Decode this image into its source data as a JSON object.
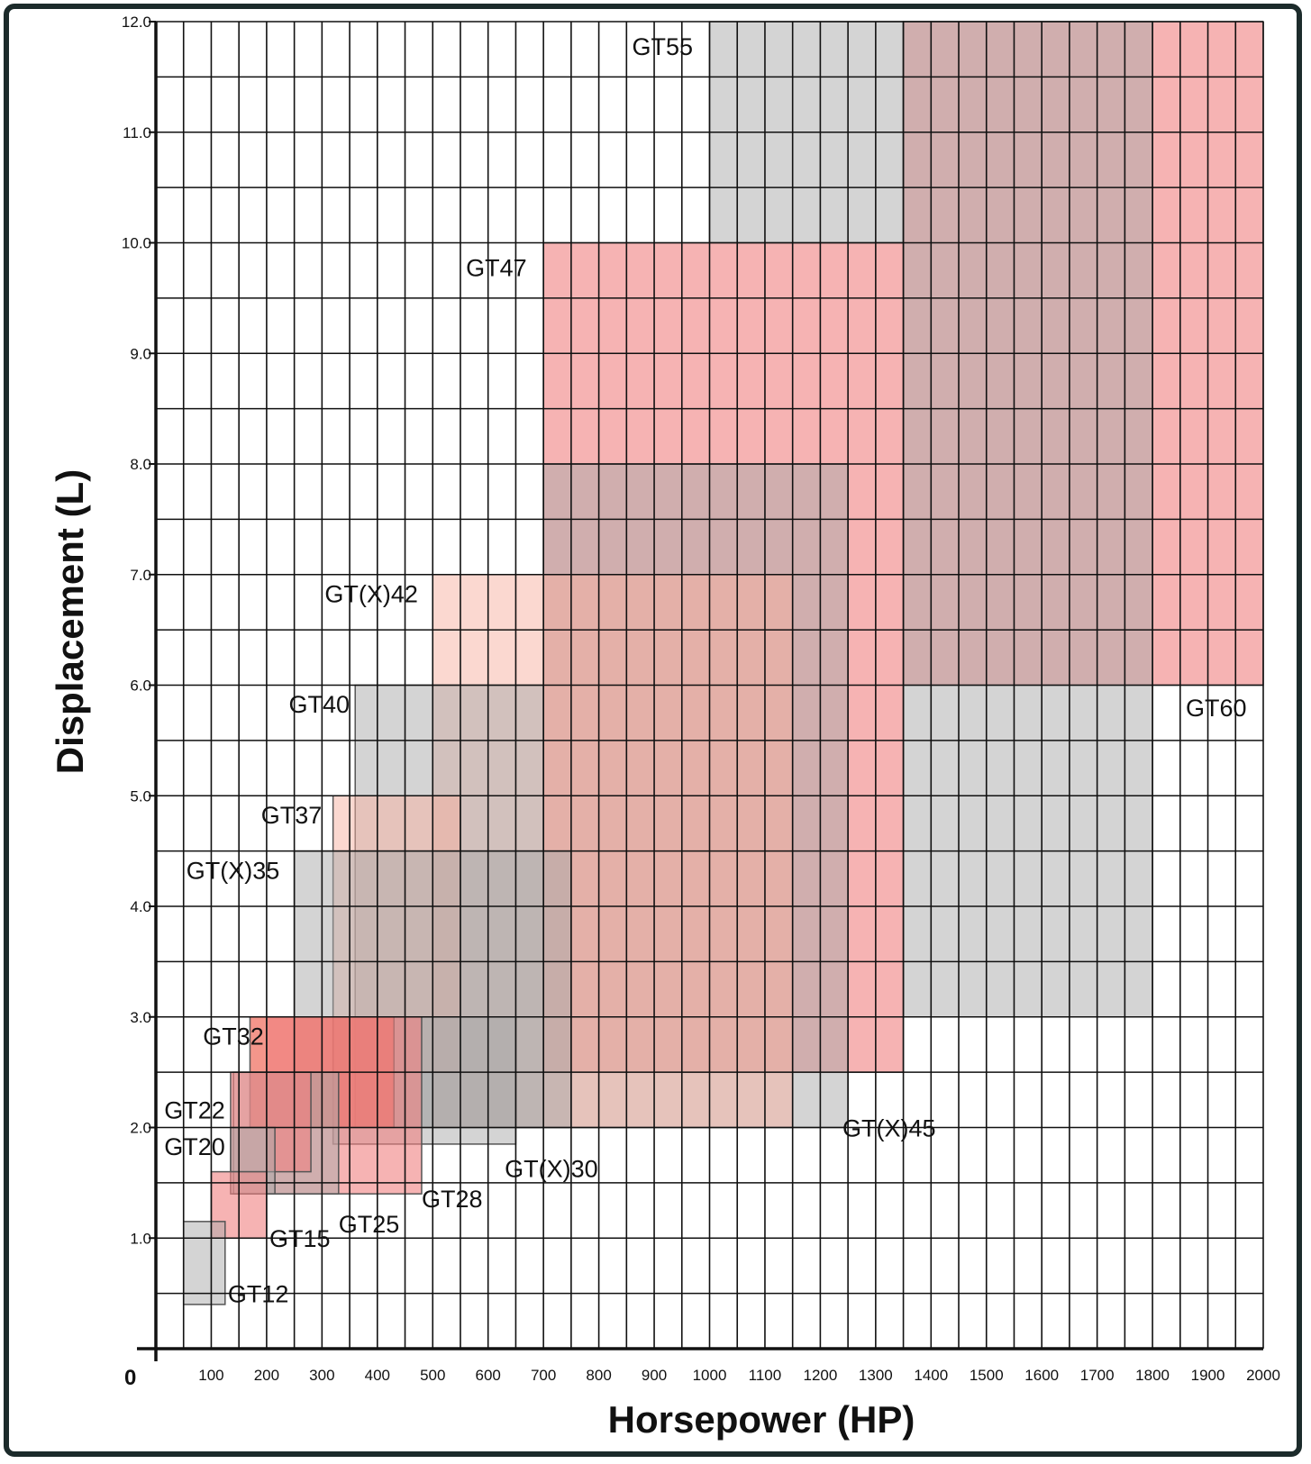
{
  "chart_data": {
    "type": "range-boxes",
    "xlabel": "Horsepower (HP)",
    "ylabel": "Displacement (L)",
    "origin_label": "0",
    "xlim": [
      0,
      2000
    ],
    "ylim": [
      0,
      12
    ],
    "x_ticks": [
      "100",
      "200",
      "300",
      "400",
      "500",
      "600",
      "700",
      "800",
      "900",
      "1000",
      "1100",
      "1200",
      "1300",
      "1400",
      "1500",
      "1600",
      "1700",
      "1800",
      "1900",
      "2000"
    ],
    "y_ticks": [
      "1.0",
      "2.0",
      "3.0",
      "4.0",
      "5.0",
      "6.0",
      "7.0",
      "8.0",
      "9.0",
      "10.0",
      "11.0",
      "12.0"
    ],
    "grid": true,
    "colors": {
      "red": "#f08080",
      "gray": "#a9a9a9",
      "pink": "#f7b2a2",
      "bright": "#f06a5a"
    },
    "series": [
      {
        "name": "GT55",
        "hp": [
          1000,
          1350
        ],
        "disp": [
          10,
          12
        ],
        "color": "gray"
      },
      {
        "name": "GT60",
        "hp": [
          1350,
          2000
        ],
        "disp": [
          6,
          12
        ],
        "color": "red"
      },
      {
        "name": "GT60",
        "hp": [
          1350,
          1800
        ],
        "disp": [
          3,
          12
        ],
        "color": "gray"
      },
      {
        "name": "GT47",
        "hp": [
          700,
          1350
        ],
        "disp": [
          2.5,
          10
        ],
        "color": "red"
      },
      {
        "name": "GT(X)45",
        "hp": [
          700,
          1250
        ],
        "disp": [
          2,
          8
        ],
        "color": "gray"
      },
      {
        "name": "GT(X)42",
        "hp": [
          500,
          1150
        ],
        "disp": [
          2,
          7
        ],
        "color": "pink"
      },
      {
        "name": "GT40",
        "hp": [
          360,
          700
        ],
        "disp": [
          2,
          6
        ],
        "color": "gray"
      },
      {
        "name": "GT37",
        "hp": [
          320,
          550
        ],
        "disp": [
          2.5,
          5
        ],
        "color": "pink"
      },
      {
        "name": "GT(X)35",
        "hp": [
          250,
          750
        ],
        "disp": [
          2,
          4.5
        ],
        "color": "gray"
      },
      {
        "name": "GT(X)30",
        "hp": [
          320,
          650
        ],
        "disp": [
          1.85,
          3
        ],
        "color": "gray"
      },
      {
        "name": "GT32",
        "hp": [
          170,
          430
        ],
        "disp": [
          2,
          3
        ],
        "color": "bright"
      },
      {
        "name": "GT28",
        "hp": [
          200,
          480
        ],
        "disp": [
          1.4,
          3
        ],
        "color": "red"
      },
      {
        "name": "GT25",
        "hp": [
          140,
          330
        ],
        "disp": [
          1.4,
          2.5
        ],
        "color": "gray"
      },
      {
        "name": "GT22",
        "hp": [
          135,
          280
        ],
        "disp": [
          1.6,
          2.5
        ],
        "color": "red"
      },
      {
        "name": "GT20",
        "hp": [
          135,
          215
        ],
        "disp": [
          1.4,
          2.0
        ],
        "color": "gray"
      },
      {
        "name": "GT15",
        "hp": [
          100,
          200
        ],
        "disp": [
          1.0,
          1.6
        ],
        "color": "red"
      },
      {
        "name": "GT12",
        "hp": [
          50,
          125
        ],
        "disp": [
          0.4,
          1.15
        ],
        "color": "gray"
      }
    ],
    "labels": [
      {
        "text": "GT55",
        "hp": 860,
        "disp": 11.7
      },
      {
        "text": "GT60",
        "hp": 1860,
        "disp": 5.72
      },
      {
        "text": "GT47",
        "hp": 560,
        "disp": 9.7
      },
      {
        "text": "GT(X)45",
        "hp": 1240,
        "disp": 1.92
      },
      {
        "text": "GT(X)42",
        "hp": 305,
        "disp": 6.75
      },
      {
        "text": "GT40",
        "hp": 240,
        "disp": 5.75
      },
      {
        "text": "GT37",
        "hp": 190,
        "disp": 4.75
      },
      {
        "text": "GT(X)35",
        "hp": 55,
        "disp": 4.25
      },
      {
        "text": "GT(X)30",
        "hp": 630,
        "disp": 1.55
      },
      {
        "text": "GT32",
        "hp": 85,
        "disp": 2.75
      },
      {
        "text": "GT28",
        "hp": 480,
        "disp": 1.28
      },
      {
        "text": "GT25",
        "hp": 330,
        "disp": 1.05
      },
      {
        "text": "GT22",
        "hp": 15,
        "disp": 2.08
      },
      {
        "text": "GT20",
        "hp": 15,
        "disp": 1.75
      },
      {
        "text": "GT15",
        "hp": 205,
        "disp": 0.92
      },
      {
        "text": "GT12",
        "hp": 130,
        "disp": 0.42
      }
    ]
  }
}
